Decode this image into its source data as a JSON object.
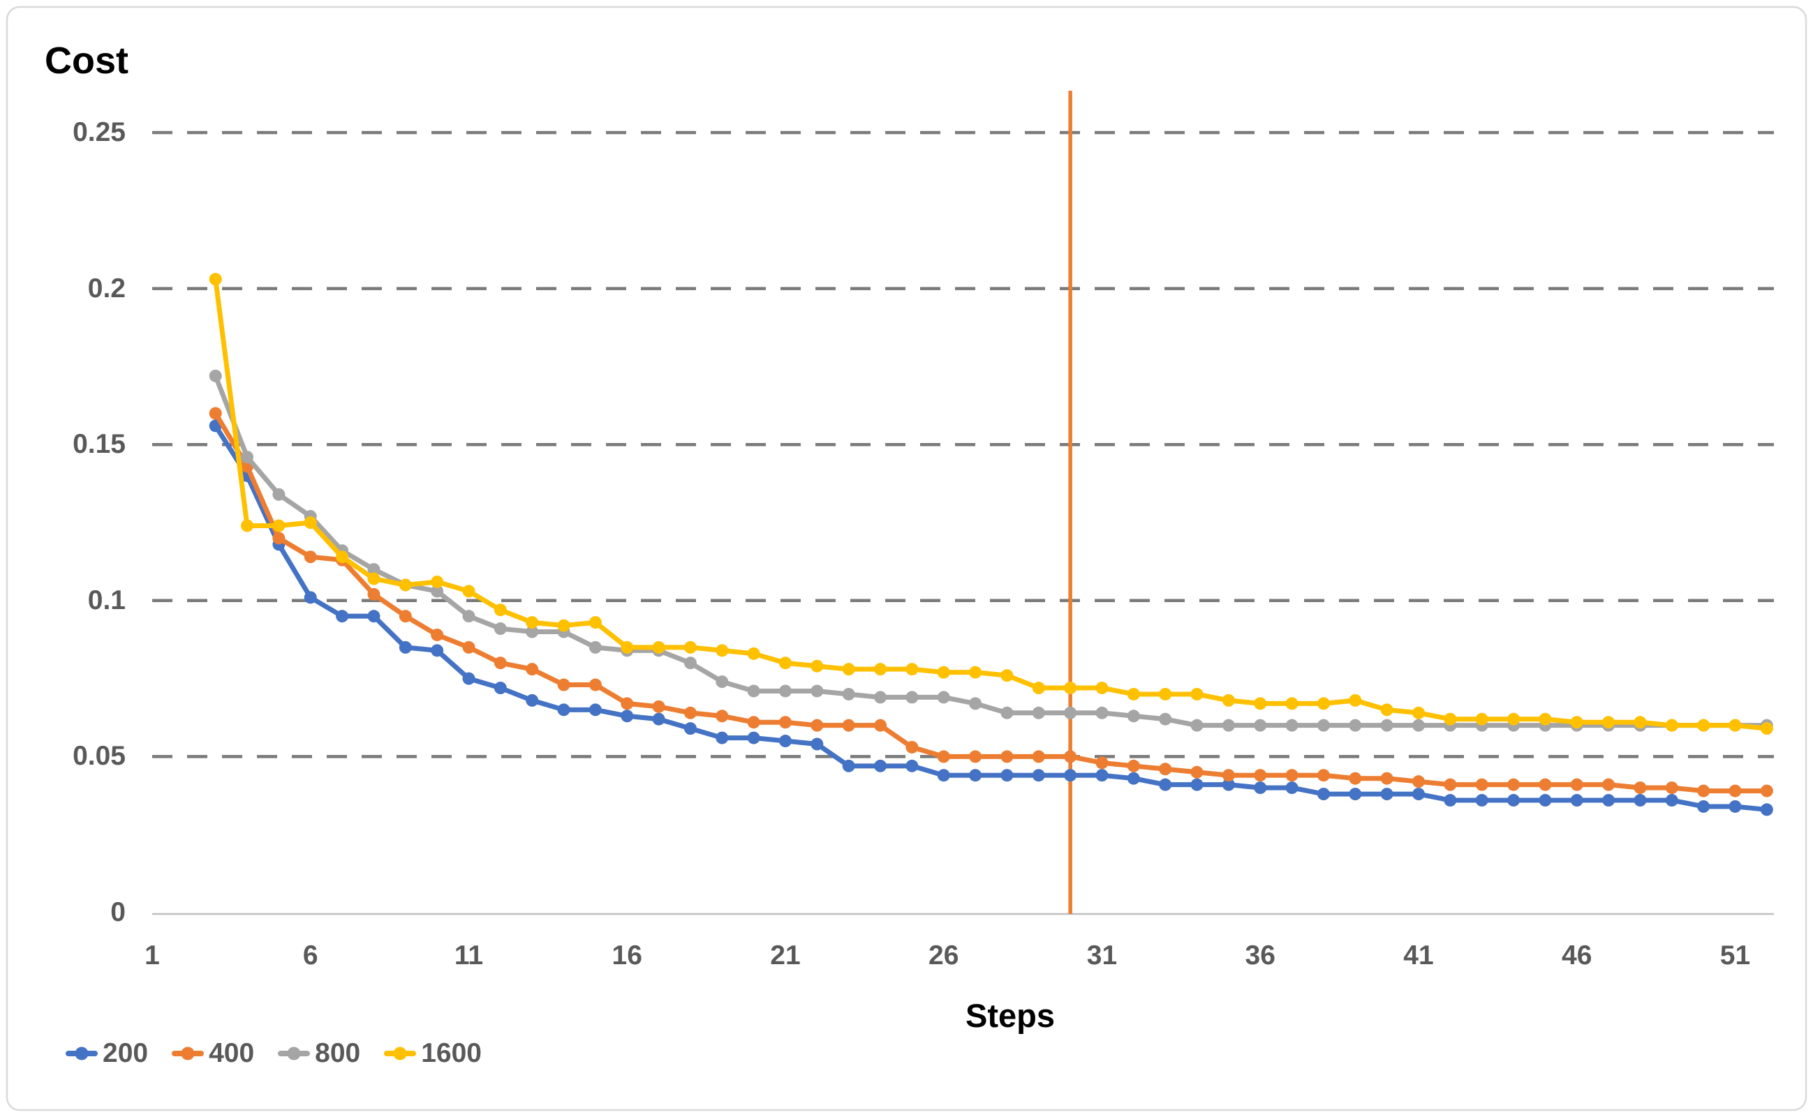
{
  "chart": {
    "title": "Cost",
    "x_axis_title": "Steps",
    "y_tick_labels": [
      "0",
      "0.05",
      "0.1",
      "0.15",
      "0.2",
      "0.25"
    ],
    "y_tick_values": [
      0,
      0.05,
      0.1,
      0.15,
      0.2,
      0.25
    ],
    "x_tick_labels": [
      "1",
      "6",
      "11",
      "16",
      "21",
      "26",
      "31",
      "36",
      "41",
      "46",
      "51"
    ],
    "x_tick_values": [
      1,
      6,
      11,
      16,
      21,
      26,
      31,
      36,
      41,
      46,
      51
    ],
    "colors": {
      "series_200": "#4472C4",
      "series_400": "#ED7D31",
      "series_800": "#A5A5A5",
      "series_1600": "#FFC000",
      "gridline": "#7A7A7A",
      "axis_line": "#BFBFBF",
      "tick_text": "#595959",
      "title_text": "#000000",
      "frame_border": "#D9D9D9",
      "reference_line": "#ED7D31"
    },
    "legend": [
      {
        "label": "200",
        "color": "#4472C4"
      },
      {
        "label": "400",
        "color": "#ED7D31"
      },
      {
        "label": "800",
        "color": "#A5A5A5"
      },
      {
        "label": "1600",
        "color": "#FFC000"
      }
    ]
  },
  "chart_data": {
    "type": "line",
    "title": "Cost",
    "xlabel": "Steps",
    "ylabel": "",
    "xlim": [
      1,
      52
    ],
    "ylim": [
      0,
      0.2635
    ],
    "grid": "horizontal dashed lines every 0.05",
    "legend_position": "bottom-left",
    "reference_vline": {
      "x": 30,
      "color": "#ED7D31"
    },
    "x": [
      3,
      4,
      5,
      6,
      7,
      8,
      9,
      10,
      11,
      12,
      13,
      14,
      15,
      16,
      17,
      18,
      19,
      20,
      21,
      22,
      23,
      24,
      25,
      26,
      27,
      28,
      29,
      30,
      31,
      32,
      33,
      34,
      35,
      36,
      37,
      38,
      39,
      40,
      41,
      42,
      43,
      44,
      45,
      46,
      47,
      48,
      49,
      50,
      51,
      52
    ],
    "series": [
      {
        "name": "200",
        "color": "#4472C4",
        "values": [
          0.156,
          0.14,
          0.118,
          0.101,
          0.095,
          0.095,
          0.085,
          0.084,
          0.075,
          0.072,
          0.068,
          0.065,
          0.065,
          0.063,
          0.062,
          0.059,
          0.056,
          0.056,
          0.055,
          0.054,
          0.047,
          0.047,
          0.047,
          0.044,
          0.044,
          0.044,
          0.044,
          0.044,
          0.044,
          0.043,
          0.041,
          0.041,
          0.041,
          0.04,
          0.04,
          0.038,
          0.038,
          0.038,
          0.038,
          0.036,
          0.036,
          0.036,
          0.036,
          0.036,
          0.036,
          0.036,
          0.036,
          0.034,
          0.034,
          0.033
        ]
      },
      {
        "name": "400",
        "color": "#ED7D31",
        "values": [
          0.16,
          0.143,
          0.12,
          0.114,
          0.113,
          0.102,
          0.095,
          0.089,
          0.085,
          0.08,
          0.078,
          0.073,
          0.073,
          0.067,
          0.066,
          0.064,
          0.063,
          0.061,
          0.061,
          0.06,
          0.06,
          0.06,
          0.053,
          0.05,
          0.05,
          0.05,
          0.05,
          0.05,
          0.048,
          0.047,
          0.046,
          0.045,
          0.044,
          0.044,
          0.044,
          0.044,
          0.043,
          0.043,
          0.042,
          0.041,
          0.041,
          0.041,
          0.041,
          0.041,
          0.041,
          0.04,
          0.04,
          0.039,
          0.039,
          0.039
        ]
      },
      {
        "name": "800",
        "color": "#A5A5A5",
        "values": [
          0.172,
          0.146,
          0.134,
          0.127,
          0.116,
          0.11,
          0.105,
          0.103,
          0.095,
          0.091,
          0.09,
          0.09,
          0.085,
          0.084,
          0.084,
          0.08,
          0.074,
          0.071,
          0.071,
          0.071,
          0.07,
          0.069,
          0.069,
          0.069,
          0.067,
          0.064,
          0.064,
          0.064,
          0.064,
          0.063,
          0.062,
          0.06,
          0.06,
          0.06,
          0.06,
          0.06,
          0.06,
          0.06,
          0.06,
          0.06,
          0.06,
          0.06,
          0.06,
          0.06,
          0.06,
          0.06,
          0.06,
          0.06,
          0.06,
          0.06
        ]
      },
      {
        "name": "1600",
        "color": "#FFC000",
        "values": [
          0.203,
          0.124,
          0.124,
          0.125,
          0.114,
          0.107,
          0.105,
          0.106,
          0.103,
          0.097,
          0.093,
          0.092,
          0.093,
          0.085,
          0.085,
          0.085,
          0.084,
          0.083,
          0.08,
          0.079,
          0.078,
          0.078,
          0.078,
          0.077,
          0.077,
          0.076,
          0.072,
          0.072,
          0.072,
          0.07,
          0.07,
          0.07,
          0.068,
          0.067,
          0.067,
          0.067,
          0.068,
          0.065,
          0.064,
          0.062,
          0.062,
          0.062,
          0.062,
          0.061,
          0.061,
          0.061,
          0.06,
          0.06,
          0.06,
          0.059
        ]
      }
    ]
  }
}
